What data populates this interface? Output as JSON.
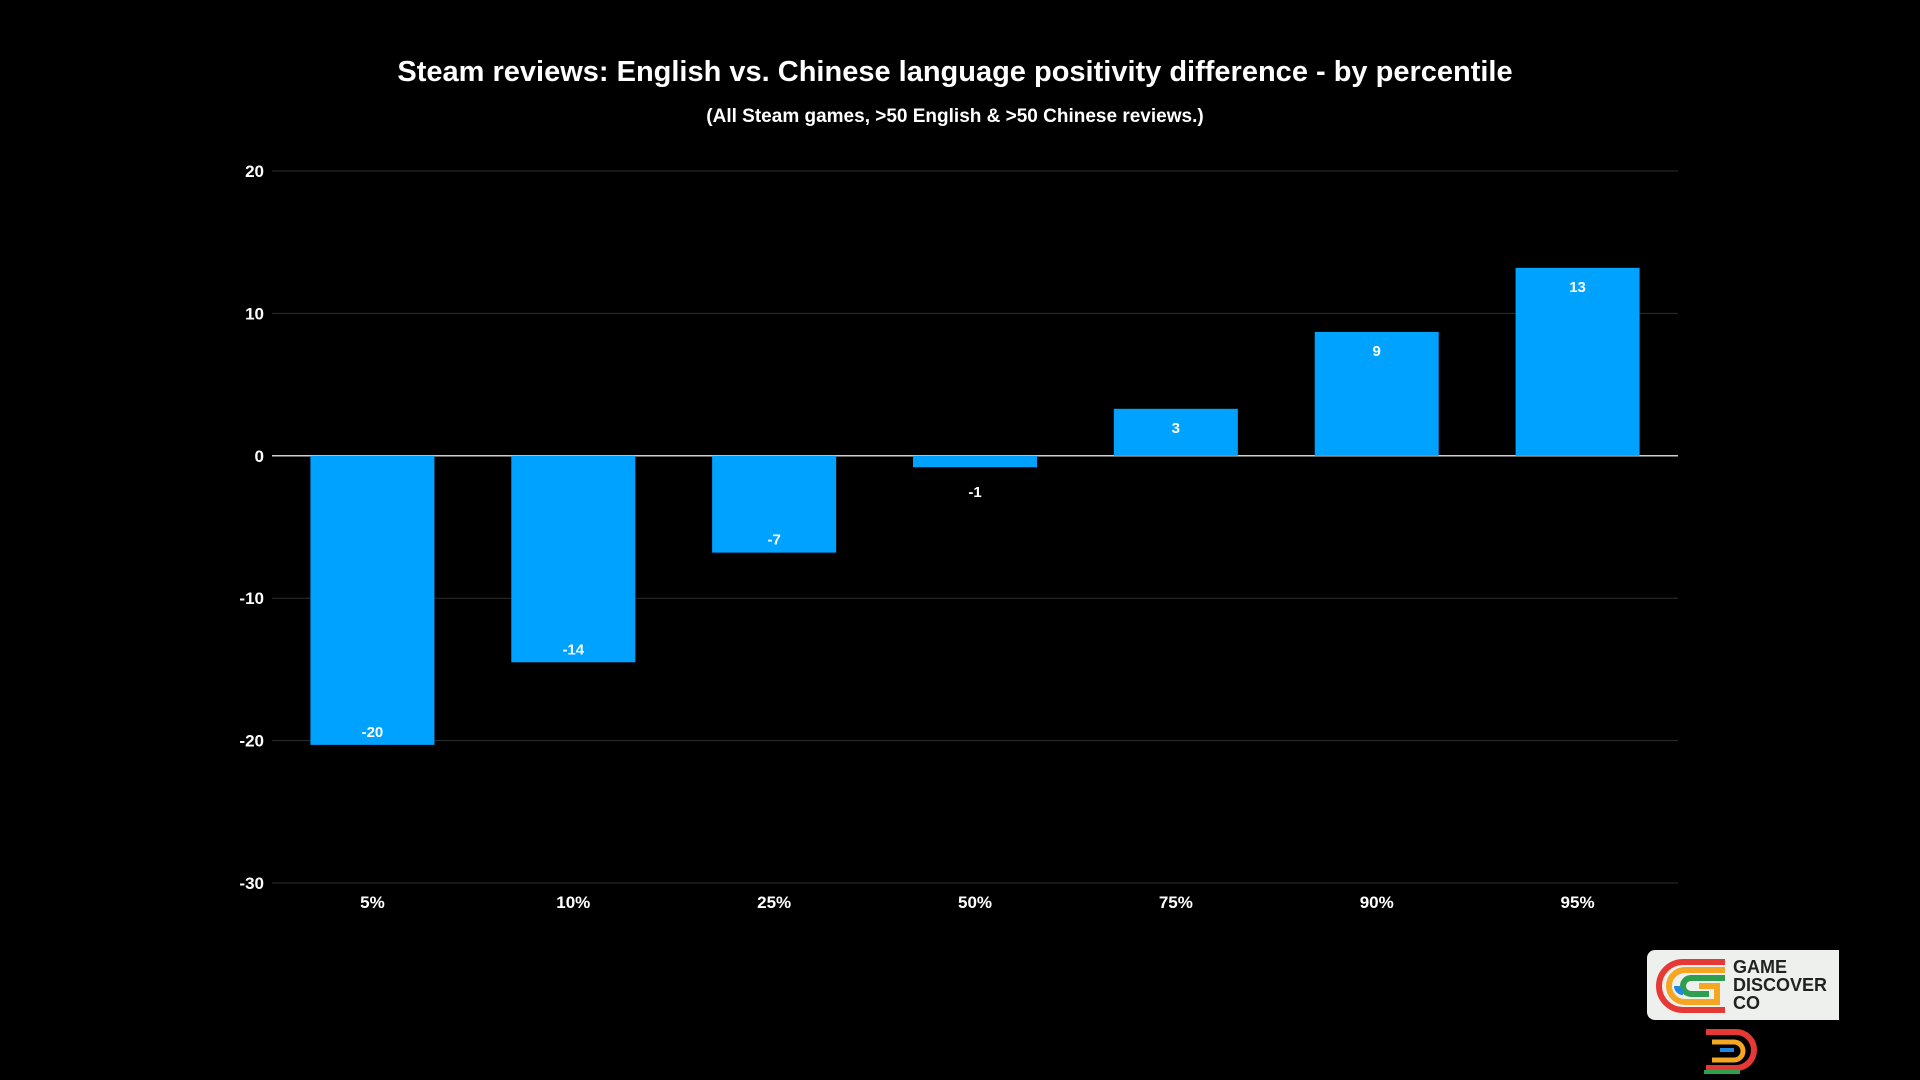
{
  "chart_data": {
    "type": "bar",
    "title": "Steam reviews: English vs. Chinese language positivity difference - by percentile",
    "subtitle": "(All Steam games, >50 English & >50 Chinese reviews.)",
    "categories": [
      "5%",
      "10%",
      "25%",
      "50%",
      "75%",
      "90%",
      "95%"
    ],
    "values": [
      -20.3,
      -14.5,
      -6.8,
      -0.8,
      3.3,
      8.7,
      13.2
    ],
    "data_labels": [
      "-20",
      "-14",
      "-7",
      "-1",
      "3",
      "9",
      "13"
    ],
    "ylim": [
      -30,
      20
    ],
    "yticks": [
      20,
      10,
      0,
      -10,
      -20,
      -30
    ],
    "xlabel": "",
    "ylabel": "",
    "grid": true,
    "bar_color": "#00a2ff",
    "legend": "none"
  },
  "logo": {
    "lines": [
      "GAME",
      "DISCOVER",
      "CO"
    ],
    "colors": [
      "#e53935",
      "#f5a623",
      "#2e9e4f",
      "#1e88e5"
    ]
  }
}
